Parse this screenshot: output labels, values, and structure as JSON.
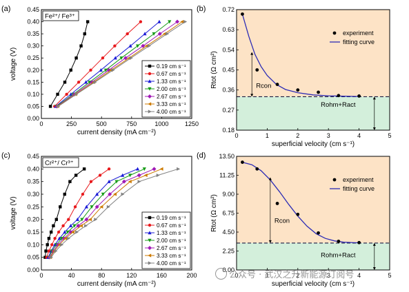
{
  "colors": {
    "s019": "#000000",
    "s067": "#e8191c",
    "s133": "#1b1bd6",
    "s200": "#169b16",
    "s267": "#a01ab5",
    "s333": "#cc7a00",
    "s400": "#808080",
    "fit": "#2b2bb5",
    "region_top": "#fde3c6",
    "region_bottom": "#d3efdb"
  },
  "charts": {
    "a": {
      "panel": "(a)",
      "annotation": "Fe²⁺/ Fe³⁺",
      "xlabel": "current density (mA cm⁻²)",
      "ylabel": "voltage (V)",
      "xlim": [
        0,
        1250
      ],
      "ylim": [
        0,
        0.45
      ],
      "xticks": [
        "0",
        "250",
        "500",
        "750",
        "1000",
        "1250"
      ],
      "xtickvals": [
        0,
        250,
        500,
        750,
        1000,
        1250
      ],
      "yticks": [
        "0.00",
        "0.05",
        "0.10",
        "0.15",
        "0.20",
        "0.25",
        "0.30",
        "0.35",
        "0.40",
        "0.45"
      ],
      "ytickvals": [
        0,
        0.05,
        0.1,
        0.15,
        0.2,
        0.25,
        0.3,
        0.35,
        0.4,
        0.45
      ],
      "legend": [
        "0.19 cm s⁻¹",
        "0.67 cm s⁻¹",
        "1.33 cm s⁻¹",
        "2.00 cm s⁻¹",
        "2.67 cm s⁻¹",
        "3.33 cm s⁻¹",
        "4.00 cm s⁻¹"
      ]
    },
    "b": {
      "panel": "(b)",
      "xlabel": "superficial velocity (cm s⁻¹)",
      "ylabel": "Rtot (Ω cm²)",
      "xlim": [
        0,
        5
      ],
      "ylim": [
        0.18,
        0.72
      ],
      "xticks": [
        "0",
        "1",
        "2",
        "3",
        "4",
        "5"
      ],
      "xtickvals": [
        0,
        1,
        2,
        3,
        4,
        5
      ],
      "yticks": [
        "0.18",
        "0.27",
        "0.36",
        "0.45",
        "0.54",
        "0.63",
        "0.72"
      ],
      "ytickvals": [
        0.18,
        0.27,
        0.36,
        0.45,
        0.54,
        0.63,
        0.72
      ],
      "legend": [
        "experiment",
        "fitting curve"
      ],
      "rcon": "Rcon",
      "rohm": "Rohm+Ract"
    },
    "c": {
      "panel": "(c)",
      "annotation": "Cr²⁺/ Cr³⁺",
      "xlabel": "current density (mA cm⁻²)",
      "ylabel": "voltage (V)",
      "xlim": [
        0,
        200
      ],
      "ylim": [
        0,
        0.45
      ],
      "xticks": [
        "0",
        "40",
        "80",
        "120",
        "160",
        "200"
      ],
      "xtickvals": [
        0,
        40,
        80,
        120,
        160,
        200
      ],
      "yticks": [
        "0.00",
        "0.05",
        "0.10",
        "0.15",
        "0.20",
        "0.25",
        "0.30",
        "0.35",
        "0.40",
        "0.45"
      ],
      "ytickvals": [
        0,
        0.05,
        0.1,
        0.15,
        0.2,
        0.25,
        0.3,
        0.35,
        0.4,
        0.45
      ],
      "legend": [
        "0.19 cm s⁻¹",
        "0.67 cm s⁻¹",
        "1.33 cm s⁻¹",
        "2.00 cm s⁻¹",
        "2.67 cm s⁻¹",
        "3.33 cm s⁻¹",
        "4.00 cm s⁻¹"
      ]
    },
    "d": {
      "panel": "(d)",
      "xlabel": "superficial velocity (cm s⁻¹)",
      "ylabel": "Rtot (Ω cm²)",
      "xlim": [
        0,
        5
      ],
      "ylim": [
        0,
        13.5
      ],
      "xticks": [
        "0",
        "1",
        "2",
        "3",
        "4",
        "5"
      ],
      "xtickvals": [
        0,
        1,
        2,
        3,
        4,
        5
      ],
      "yticks": [
        "0.00",
        "2.25",
        "4.50",
        "6.75",
        "9.00",
        "11.25",
        "13.50"
      ],
      "ytickvals": [
        0,
        2.25,
        4.5,
        6.75,
        9.0,
        11.25,
        13.5
      ],
      "legend": [
        "experiment",
        "fitting curve"
      ],
      "rcon": "Rcon",
      "rohm": "Rohm+Ract"
    }
  },
  "chart_data": [
    {
      "id": "a",
      "type": "line",
      "xlabel": "current density (mA cm⁻²)",
      "ylabel": "voltage (V)",
      "xlim": [
        0,
        1250
      ],
      "ylim": [
        0,
        0.45
      ],
      "voltages": [
        0.05,
        0.1,
        0.15,
        0.2,
        0.25,
        0.3,
        0.35,
        0.4
      ],
      "series": [
        {
          "name": "0.19 cm s⁻¹",
          "color": "#000000",
          "marker": "square",
          "x": [
            75,
            135,
            195,
            245,
            290,
            330,
            360,
            385
          ],
          "y": [
            0.05,
            0.1,
            0.15,
            0.2,
            0.25,
            0.3,
            0.35,
            0.4
          ]
        },
        {
          "name": "0.67 cm s⁻¹",
          "color": "#e8191c",
          "marker": "circle",
          "x": [
            110,
            210,
            310,
            410,
            510,
            610,
            715,
            825
          ],
          "y": [
            0.05,
            0.1,
            0.15,
            0.2,
            0.25,
            0.3,
            0.35,
            0.4
          ]
        },
        {
          "name": "1.33 cm s⁻¹",
          "color": "#1b1bd6",
          "marker": "triangle",
          "x": [
            120,
            245,
            370,
            495,
            615,
            740,
            860,
            980
          ],
          "y": [
            0.05,
            0.1,
            0.15,
            0.2,
            0.25,
            0.3,
            0.35,
            0.4
          ]
        },
        {
          "name": "2.00 cm s⁻¹",
          "color": "#169b16",
          "marker": "triangle-down",
          "x": [
            125,
            265,
            400,
            535,
            665,
            800,
            935,
            1065
          ],
          "y": [
            0.05,
            0.1,
            0.15,
            0.2,
            0.25,
            0.3,
            0.35,
            0.4
          ]
        },
        {
          "name": "2.67 cm s⁻¹",
          "color": "#a01ab5",
          "marker": "diamond",
          "x": [
            130,
            275,
            420,
            560,
            700,
            845,
            985,
            1130
          ],
          "y": [
            0.05,
            0.1,
            0.15,
            0.2,
            0.25,
            0.3,
            0.35,
            0.4
          ]
        },
        {
          "name": "3.33 cm s⁻¹",
          "color": "#cc7a00",
          "marker": "triangle-left",
          "x": [
            135,
            285,
            435,
            580,
            730,
            875,
            1025,
            1170
          ],
          "y": [
            0.05,
            0.1,
            0.15,
            0.2,
            0.25,
            0.3,
            0.35,
            0.4
          ]
        },
        {
          "name": "4.00 cm s⁻¹",
          "color": "#808080",
          "marker": "triangle-right",
          "x": [
            140,
            290,
            445,
            595,
            745,
            895,
            1045,
            1195
          ],
          "y": [
            0.05,
            0.1,
            0.15,
            0.2,
            0.25,
            0.3,
            0.35,
            0.4
          ]
        }
      ]
    },
    {
      "id": "b",
      "type": "scatter",
      "xlabel": "superficial velocity (cm s⁻¹)",
      "ylabel": "Rtot (Ω cm²)",
      "xlim": [
        0,
        5
      ],
      "ylim": [
        0.18,
        0.72
      ],
      "series": [
        {
          "name": "experiment",
          "x": [
            0.19,
            0.67,
            1.33,
            2.0,
            2.67,
            3.33,
            4.0
          ],
          "y": [
            0.7,
            0.45,
            0.385,
            0.36,
            0.35,
            0.335,
            0.333
          ]
        },
        {
          "name": "fitting curve",
          "type": "line",
          "x": [
            0.19,
            0.4,
            0.6,
            0.8,
            1.0,
            1.3,
            1.6,
            2.0,
            2.5,
            3.0,
            3.5,
            4.0
          ],
          "y": [
            0.7,
            0.6,
            0.52,
            0.465,
            0.425,
            0.385,
            0.362,
            0.348,
            0.338,
            0.334,
            0.332,
            0.331
          ]
        }
      ],
      "dashed_line_y": 0.33,
      "annotations": [
        "Rcon",
        "Rohm+Ract"
      ]
    },
    {
      "id": "c",
      "type": "line",
      "xlabel": "current density (mA cm⁻²)",
      "ylabel": "voltage (V)",
      "xlim": [
        0,
        200
      ],
      "ylim": [
        0,
        0.45
      ],
      "series": [
        {
          "name": "0.19 cm s⁻¹",
          "color": "#000000",
          "marker": "square",
          "x": [
            5,
            6,
            8,
            10,
            13,
            16,
            20,
            25,
            31,
            38,
            46,
            57
          ],
          "y": [
            0.05,
            0.075,
            0.1,
            0.125,
            0.15,
            0.175,
            0.2,
            0.25,
            0.3,
            0.35,
            0.375,
            0.4
          ]
        },
        {
          "name": "0.67 cm s⁻¹",
          "color": "#e8191c",
          "marker": "circle",
          "x": [
            7,
            10,
            14,
            18,
            23,
            29,
            36,
            45,
            55,
            66,
            78,
            90
          ],
          "y": [
            0.05,
            0.075,
            0.1,
            0.125,
            0.15,
            0.175,
            0.2,
            0.25,
            0.3,
            0.35,
            0.375,
            0.4
          ]
        },
        {
          "name": "1.33 cm s⁻¹",
          "color": "#1b1bd6",
          "marker": "triangle",
          "x": [
            9,
            13,
            18,
            24,
            31,
            39,
            48,
            60,
            74,
            90,
            108,
            128
          ],
          "y": [
            0.05,
            0.075,
            0.1,
            0.125,
            0.15,
            0.175,
            0.2,
            0.25,
            0.3,
            0.35,
            0.375,
            0.4
          ]
        },
        {
          "name": "2.00 cm s⁻¹",
          "color": "#169b16",
          "marker": "triangle-down",
          "x": [
            10,
            14,
            20,
            27,
            35,
            44,
            54,
            67,
            82,
            100,
            118,
            137
          ],
          "y": [
            0.05,
            0.075,
            0.1,
            0.125,
            0.15,
            0.175,
            0.2,
            0.25,
            0.3,
            0.35,
            0.375,
            0.4
          ]
        },
        {
          "name": "2.67 cm s⁻¹",
          "color": "#a01ab5",
          "marker": "diamond",
          "x": [
            11,
            16,
            22,
            30,
            39,
            49,
            60,
            74,
            91,
            110,
            130,
            150
          ],
          "y": [
            0.05,
            0.075,
            0.1,
            0.125,
            0.15,
            0.175,
            0.2,
            0.25,
            0.3,
            0.35,
            0.375,
            0.4
          ]
        },
        {
          "name": "3.33 cm s⁻¹",
          "color": "#cc7a00",
          "marker": "triangle-left",
          "x": [
            12,
            17,
            24,
            32,
            42,
            53,
            65,
            80,
            98,
            118,
            139,
            160
          ],
          "y": [
            0.05,
            0.075,
            0.1,
            0.125,
            0.15,
            0.175,
            0.2,
            0.25,
            0.3,
            0.35,
            0.375,
            0.4
          ]
        },
        {
          "name": "4.00 cm s⁻¹",
          "color": "#808080",
          "marker": "triangle-right",
          "x": [
            13,
            19,
            27,
            36,
            47,
            59,
            72,
            89,
            108,
            130,
            155,
            182
          ],
          "y": [
            0.05,
            0.075,
            0.1,
            0.125,
            0.15,
            0.175,
            0.2,
            0.25,
            0.3,
            0.35,
            0.375,
            0.4
          ]
        }
      ]
    },
    {
      "id": "d",
      "type": "scatter",
      "xlabel": "superficial velocity (cm s⁻¹)",
      "ylabel": "Rtot (Ω cm²)",
      "xlim": [
        0,
        5
      ],
      "ylim": [
        0,
        13.5
      ],
      "series": [
        {
          "name": "experiment",
          "x": [
            0.19,
            0.67,
            1.33,
            2.0,
            2.67,
            3.33,
            4.0
          ],
          "y": [
            12.8,
            12.0,
            7.9,
            6.6,
            4.4,
            3.4,
            3.25
          ]
        },
        {
          "name": "fitting curve",
          "type": "line",
          "x": [
            0.19,
            0.5,
            0.8,
            1.1,
            1.4,
            1.7,
            2.0,
            2.3,
            2.6,
            2.9,
            3.2,
            3.5,
            4.0
          ],
          "y": [
            12.8,
            12.5,
            11.8,
            10.7,
            9.3,
            7.8,
            6.4,
            5.2,
            4.3,
            3.75,
            3.45,
            3.3,
            3.22
          ]
        }
      ],
      "dashed_line_y": 3.2,
      "annotations": [
        "Rcon",
        "Rohm+Ract"
      ]
    }
  ],
  "watermark": "公众号 · 武汉之升新能源订阅号"
}
